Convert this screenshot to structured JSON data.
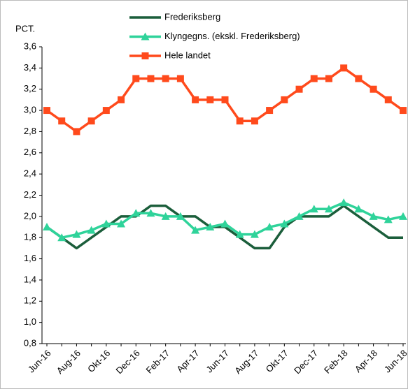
{
  "chart_data": {
    "type": "line",
    "y_axis_label": "PCT.",
    "categories": [
      "Jun-16",
      null,
      "Aug-16",
      null,
      "Okt-16",
      null,
      "Dec-16",
      null,
      "Feb-17",
      null,
      "Apr-17",
      null,
      "Jun-17",
      null,
      "Aug-17",
      null,
      "Okt-17",
      null,
      "Dec-17",
      null,
      "Feb-18",
      null,
      "Apr-18",
      null,
      "Jun-18"
    ],
    "series": [
      {
        "name": "Frederiksberg",
        "color": "#1b5e3b",
        "marker": "none",
        "values": [
          1.9,
          1.8,
          1.7,
          1.8,
          1.9,
          2.0,
          2.0,
          2.1,
          2.1,
          2.0,
          2.0,
          1.9,
          1.9,
          1.8,
          1.7,
          1.7,
          1.9,
          2.0,
          2.0,
          2.0,
          2.1,
          2.0,
          1.9,
          1.8,
          1.8
        ]
      },
      {
        "name": "Klyngegns. (ekskl. Frederiksberg)",
        "color": "#2fd39a",
        "marker": "triangle",
        "values": [
          1.9,
          1.8,
          1.83,
          1.87,
          1.93,
          1.93,
          2.03,
          2.03,
          2.0,
          2.0,
          1.87,
          1.9,
          1.93,
          1.83,
          1.83,
          1.9,
          1.93,
          2.0,
          2.07,
          2.07,
          2.13,
          2.07,
          2.0,
          1.97,
          2.0
        ]
      },
      {
        "name": "Hele landet",
        "color": "#ff4a1c",
        "marker": "square",
        "values": [
          3.0,
          2.9,
          2.8,
          2.9,
          3.0,
          3.1,
          3.3,
          3.3,
          3.3,
          3.3,
          3.1,
          3.1,
          3.1,
          2.9,
          2.9,
          3.0,
          3.1,
          3.2,
          3.3,
          3.3,
          3.4,
          3.3,
          3.2,
          3.1,
          3.0
        ]
      }
    ],
    "ylim": [
      0.8,
      3.6
    ],
    "yticks": [
      {
        "value": 0.8,
        "label": "0,8"
      },
      {
        "value": 1.0,
        "label": "1,0"
      },
      {
        "value": 1.2,
        "label": "1,2"
      },
      {
        "value": 1.4,
        "label": "1,4"
      },
      {
        "value": 1.6,
        "label": "1,6"
      },
      {
        "value": 1.8,
        "label": "1,8"
      },
      {
        "value": 2.0,
        "label": "2,0"
      },
      {
        "value": 2.2,
        "label": "2,2"
      },
      {
        "value": 2.4,
        "label": "2,4"
      },
      {
        "value": 2.6,
        "label": "2,6"
      },
      {
        "value": 2.8,
        "label": "2,8"
      },
      {
        "value": 3.0,
        "label": "3,0"
      },
      {
        "value": 3.2,
        "label": "3,2"
      },
      {
        "value": 3.4,
        "label": "3,4"
      },
      {
        "value": 3.6,
        "label": "3,6"
      }
    ],
    "grid": false,
    "legend": "top"
  }
}
